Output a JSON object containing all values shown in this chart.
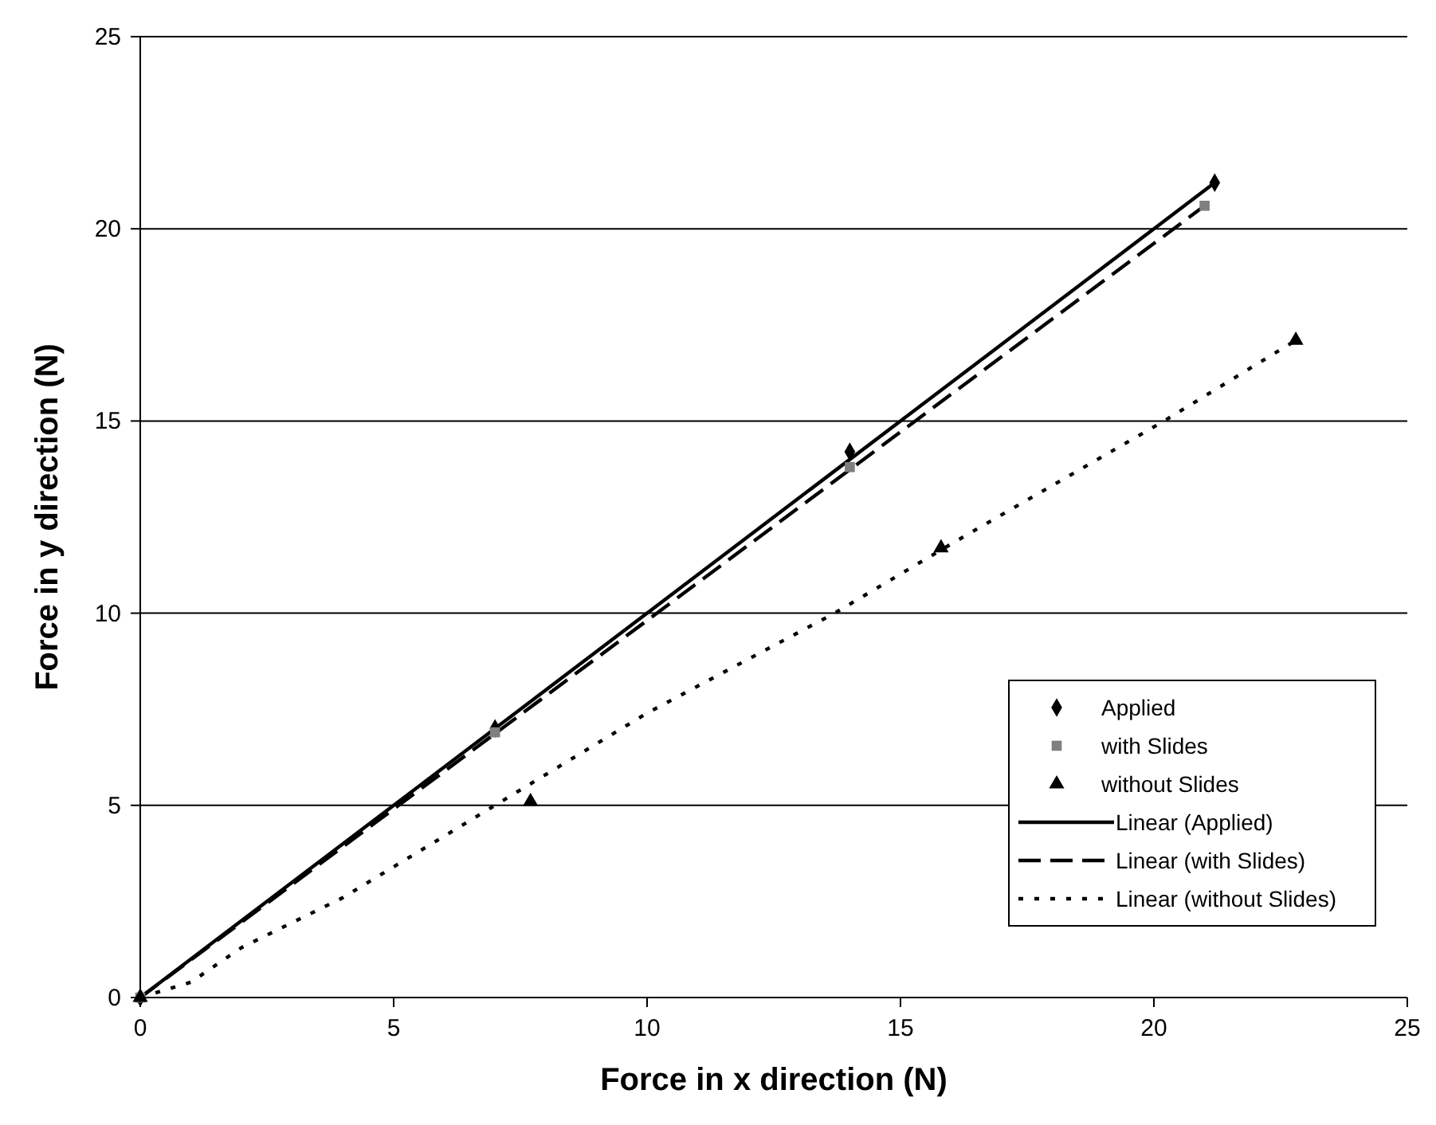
{
  "chart_data": {
    "type": "scatter",
    "xlabel": "Force in x direction (N)",
    "ylabel": "Force in y direction (N)",
    "xlim": [
      0,
      25
    ],
    "ylim": [
      0,
      25
    ],
    "xticks": [
      0,
      5,
      10,
      15,
      20,
      25
    ],
    "yticks": [
      0,
      5,
      10,
      15,
      20,
      25
    ],
    "grid": "y",
    "legend": "bottom right",
    "series": [
      {
        "name": "Applied",
        "marker": "diamond",
        "color": "#000000",
        "x": [
          0,
          7,
          14,
          21.2
        ],
        "values": [
          0,
          7,
          14.2,
          21.2
        ]
      },
      {
        "name": "with Slides",
        "marker": "square",
        "color": "#7f7f7f",
        "x": [
          0,
          7,
          14,
          21
        ],
        "values": [
          0,
          6.9,
          13.8,
          20.6
        ]
      },
      {
        "name": "without Slides",
        "marker": "triangle",
        "color": "#000000",
        "x": [
          0,
          7.7,
          15.8,
          22.8
        ],
        "values": [
          0,
          5.1,
          11.7,
          17.1
        ]
      },
      {
        "name": "Linear (Applied)",
        "type": "line",
        "line_style": "solid",
        "color": "#000000",
        "x": [
          0,
          21.2
        ],
        "values": [
          0,
          21.2
        ]
      },
      {
        "name": "Linear (with Slides)",
        "type": "line",
        "line_style": "dashed",
        "color": "#000000",
        "x": [
          0,
          21
        ],
        "values": [
          0,
          20.6
        ]
      },
      {
        "name": "Linear (without Slides)",
        "type": "line",
        "line_style": "dotted",
        "color": "#000000",
        "x": [
          0,
          1,
          2,
          4,
          5,
          7,
          10,
          13.7,
          16,
          20.2,
          22.8
        ],
        "values": [
          0,
          0.4,
          1.3,
          2.6,
          3.4,
          5,
          7.4,
          10,
          11.8,
          15,
          17.1
        ]
      }
    ]
  }
}
